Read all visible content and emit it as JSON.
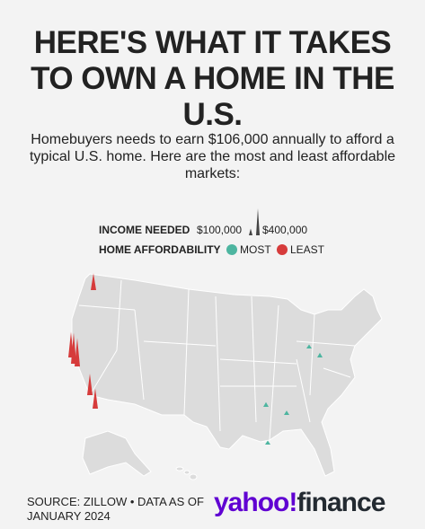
{
  "title": "HERE'S WHAT IT TAKES TO OWN A HOME IN THE U.S.",
  "subtitle": "Homebuyers needs to earn $106,000 annually to afford a typical U.S. home. Here are the most and least affordable markets:",
  "legend": {
    "income_label": "INCOME NEEDED",
    "income_ticks": [
      {
        "value": 100000,
        "label": "$100,000"
      },
      {
        "value": 400000,
        "label": "$400,000"
      }
    ],
    "affordability_label": "HOME AFFORDABILITY",
    "most": {
      "label": "MOST",
      "color": "#4db5a0"
    },
    "least": {
      "label": "LEAST",
      "color": "#d63b3b"
    }
  },
  "least_affordable_income": [
    250000,
    380000,
    460000,
    420000,
    320000,
    300000
  ],
  "most_affordable_income": [
    60000,
    70000,
    70000,
    65000,
    60000
  ],
  "source": "SOURCE: ZILLOW • DATA AS OF JANUARY 2024",
  "logo": {
    "brand": "yahoo!",
    "product": "finance"
  }
}
